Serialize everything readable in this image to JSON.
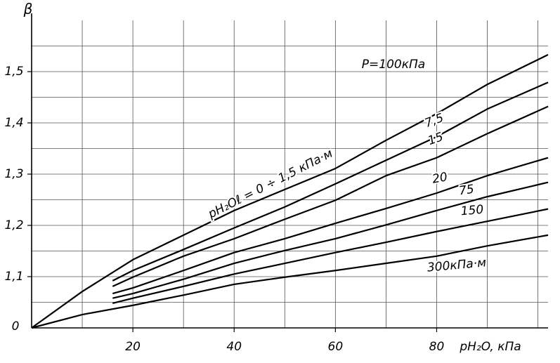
{
  "chart_data": {
    "type": "line",
    "ylabel": "β",
    "xlabel": "pH₂O, кПа",
    "note": "P=100кПа",
    "origin_label": "0",
    "xlim": [
      0,
      102
    ],
    "ylim": [
      1.0,
      1.6
    ],
    "xticks": [
      20,
      40,
      60,
      80
    ],
    "yticks": [
      {
        "value": 1.1,
        "label": "1,1"
      },
      {
        "value": 1.2,
        "label": "1,2"
      },
      {
        "value": 1.3,
        "label": "1,3"
      },
      {
        "value": 1.4,
        "label": "1,4"
      },
      {
        "value": 1.5,
        "label": "1,5"
      }
    ],
    "grid": true,
    "xgrid": [
      10,
      20,
      30,
      40,
      50,
      60,
      70,
      80,
      90,
      100
    ],
    "ygrid": [
      1.05,
      1.1,
      1.15,
      1.2,
      1.25,
      1.3,
      1.35,
      1.4,
      1.45,
      1.5,
      1.55
    ],
    "series": [
      {
        "name": "pH₂Oℓ = 0 ÷ 1,5 кПа·м",
        "color": "#000000",
        "x": [
          0,
          10,
          20,
          30,
          40,
          50,
          60,
          70,
          80,
          90,
          102
        ],
        "values": [
          1.0,
          1.071,
          1.133,
          1.181,
          1.229,
          1.27,
          1.311,
          1.366,
          1.418,
          1.475,
          1.533
        ]
      },
      {
        "name": "7,5",
        "color": "#000000",
        "x": [
          16,
          20,
          30,
          40,
          50,
          60,
          70,
          80,
          90,
          102
        ],
        "values": [
          1.092,
          1.112,
          1.153,
          1.195,
          1.236,
          1.281,
          1.327,
          1.373,
          1.427,
          1.479
        ]
      },
      {
        "name": "15",
        "color": "#000000",
        "x": [
          16,
          20,
          30,
          40,
          50,
          60,
          70,
          80,
          90,
          102
        ],
        "values": [
          1.081,
          1.099,
          1.14,
          1.174,
          1.212,
          1.249,
          1.297,
          1.332,
          1.379,
          1.432
        ]
      },
      {
        "name": "20",
        "color": "#000000",
        "x": [
          16,
          20,
          30,
          40,
          50,
          60,
          70,
          80,
          90,
          102
        ],
        "values": [
          1.067,
          1.078,
          1.112,
          1.147,
          1.174,
          1.204,
          1.233,
          1.263,
          1.297,
          1.332
        ]
      },
      {
        "name": "75",
        "color": "#000000",
        "x": [
          16,
          20,
          30,
          40,
          50,
          60,
          70,
          80,
          90,
          102
        ],
        "values": [
          1.058,
          1.067,
          1.095,
          1.126,
          1.151,
          1.174,
          1.201,
          1.229,
          1.256,
          1.284
        ]
      },
      {
        "name": "150",
        "color": "#000000",
        "x": [
          16,
          20,
          30,
          40,
          50,
          60,
          70,
          80,
          90,
          102
        ],
        "values": [
          1.048,
          1.058,
          1.081,
          1.105,
          1.126,
          1.147,
          1.167,
          1.188,
          1.208,
          1.232
        ]
      },
      {
        "name": "300кПа·м",
        "color": "#000000",
        "x": [
          0,
          10,
          20,
          30,
          40,
          50,
          60,
          70,
          80,
          90,
          102
        ],
        "values": [
          1.0,
          1.026,
          1.044,
          1.064,
          1.085,
          1.099,
          1.112,
          1.126,
          1.14,
          1.16,
          1.181
        ]
      }
    ]
  }
}
